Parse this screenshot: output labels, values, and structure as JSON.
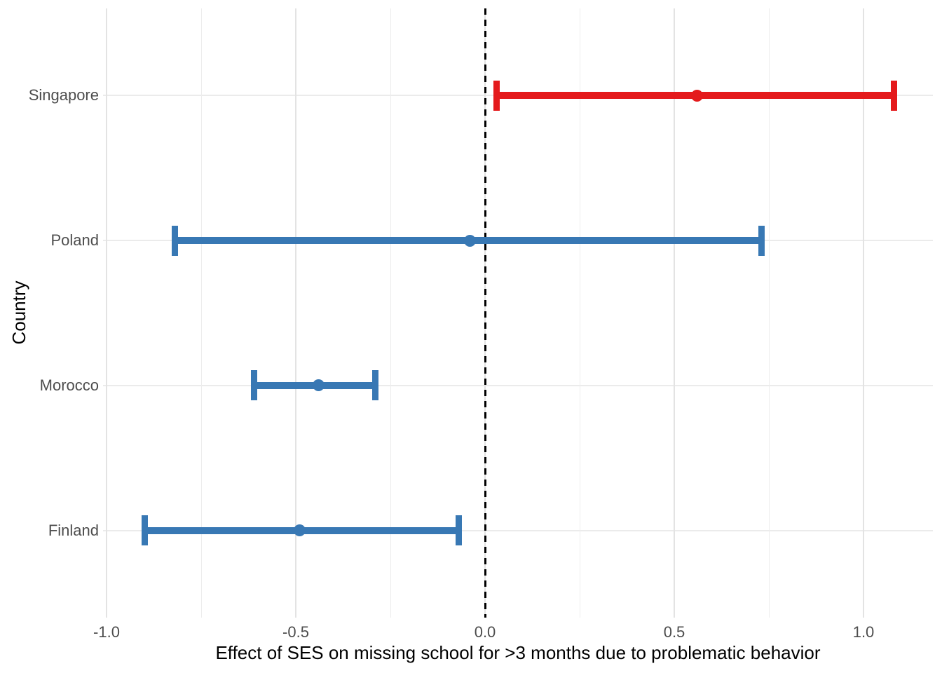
{
  "chart_data": {
    "type": "scatter",
    "subtype": "forest-plot-horizontal-error-bars",
    "title": "",
    "xlabel": "Effect of SES on missing school for >3 months due to problematic behavior",
    "ylabel": "Country",
    "categories": [
      "Singapore",
      "Poland",
      "Morocco",
      "Finland"
    ],
    "series": [
      {
        "name": "Singapore",
        "estimate": 0.56,
        "ci_low": 0.03,
        "ci_high": 1.08,
        "color": "#e41a1c"
      },
      {
        "name": "Poland",
        "estimate": -0.04,
        "ci_low": -0.82,
        "ci_high": 0.73,
        "color": "#3878b4"
      },
      {
        "name": "Morocco",
        "estimate": -0.44,
        "ci_low": -0.61,
        "ci_high": -0.29,
        "color": "#3878b4"
      },
      {
        "name": "Finland",
        "estimate": -0.49,
        "ci_low": -0.9,
        "ci_high": -0.07,
        "color": "#3878b4"
      }
    ],
    "xlim": [
      -1.01,
      1.18
    ],
    "x_major_ticks": [
      -1.0,
      -0.5,
      0.0,
      0.5,
      1.0
    ],
    "x_tick_labels": [
      "-1.0",
      "-0.5",
      "0.0",
      "0.5",
      "1.0"
    ],
    "x_minor_ticks": [
      -0.75,
      -0.25,
      0.25,
      0.75
    ],
    "reference_line": {
      "x": 0,
      "style": "dashed",
      "color": "#000000"
    },
    "grid": true,
    "legend_position": "none",
    "colors": {
      "highlight": "#e41a1c",
      "default": "#3878b4",
      "grid": "#ebebeb",
      "axis_text": "#4d4d4d",
      "axis_title": "#000000"
    }
  }
}
